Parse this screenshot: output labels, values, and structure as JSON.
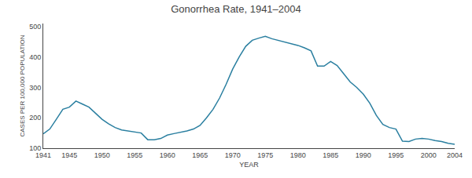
{
  "chart_data": {
    "type": "line",
    "title": "Gonorrhea Rate, 1941–2004",
    "xlabel": "YEAR",
    "ylabel": "CASES PER 100,000 POPULATION",
    "color": "#2a7fa0",
    "grid": false,
    "xlim": [
      1941,
      2004
    ],
    "ylim": [
      100,
      510
    ],
    "xticks": [
      1941,
      1945,
      1950,
      1955,
      1960,
      1965,
      1970,
      1975,
      1980,
      1985,
      1990,
      1995,
      2000,
      2004
    ],
    "yticks": [
      100,
      200,
      300,
      400,
      500
    ],
    "x": [
      1941,
      1942,
      1943,
      1944,
      1945,
      1946,
      1947,
      1948,
      1949,
      1950,
      1951,
      1952,
      1953,
      1954,
      1955,
      1956,
      1957,
      1958,
      1959,
      1960,
      1961,
      1962,
      1963,
      1964,
      1965,
      1966,
      1967,
      1968,
      1969,
      1970,
      1971,
      1972,
      1973,
      1974,
      1975,
      1976,
      1977,
      1978,
      1979,
      1980,
      1981,
      1982,
      1983,
      1984,
      1985,
      1986,
      1987,
      1988,
      1989,
      1990,
      1991,
      1992,
      1993,
      1994,
      1995,
      1996,
      1997,
      1998,
      1999,
      2000,
      2001,
      2002,
      2003,
      2004
    ],
    "values": [
      147,
      163,
      195,
      228,
      235,
      255,
      245,
      235,
      215,
      195,
      180,
      168,
      160,
      157,
      153,
      150,
      128,
      128,
      132,
      143,
      148,
      152,
      157,
      163,
      175,
      200,
      228,
      265,
      310,
      360,
      400,
      435,
      455,
      462,
      468,
      460,
      455,
      450,
      445,
      438,
      430,
      420,
      370,
      370,
      385,
      372,
      345,
      318,
      300,
      278,
      248,
      208,
      178,
      168,
      163,
      123,
      122,
      130,
      132,
      130,
      125,
      122,
      116,
      113
    ]
  }
}
